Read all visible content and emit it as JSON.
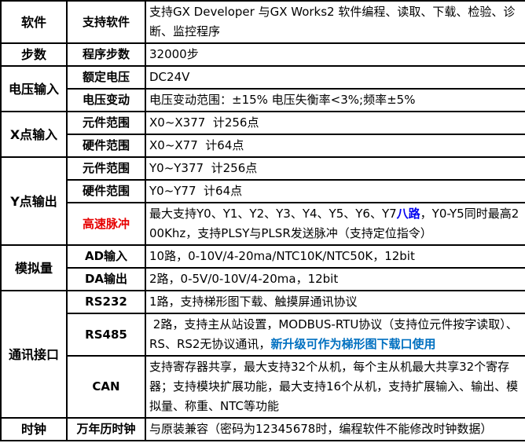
{
  "colors": {
    "border": "#000000",
    "text": "#000000",
    "background": "#ffffff",
    "highlight_red": "#e60000",
    "highlight_blue": "#0000f0",
    "highlight_office_blue": "#0070c0"
  },
  "table": {
    "groups": [
      {
        "category": "软件",
        "rows": [
          {
            "label": "支持软件",
            "desc": [
              {
                "t": "支持GX Developer 与GX Works2 软件编程、读取、下载、检验、诊断、监控程序"
              }
            ]
          }
        ]
      },
      {
        "category": "步数",
        "rows": [
          {
            "label": "程序步数",
            "desc": [
              {
                "t": "32000步"
              }
            ]
          }
        ]
      },
      {
        "category": "电压输入",
        "rows": [
          {
            "label": "额定电压",
            "desc": [
              {
                "t": "DC24V"
              }
            ]
          },
          {
            "label": "电压变动",
            "desc": [
              {
                "t": "电压变动范围：±15% 电压失衡率<3%;频率±5%"
              }
            ]
          }
        ]
      },
      {
        "category": "X点输入",
        "rows": [
          {
            "label": "元件范围",
            "desc": [
              {
                "t": "X0~X377  计256点"
              }
            ]
          },
          {
            "label": "硬件范围",
            "desc": [
              {
                "t": "X0~X77  计64点"
              }
            ]
          }
        ]
      },
      {
        "category": "Y点输出",
        "rows": [
          {
            "label": "元件范围",
            "desc": [
              {
                "t": "Y0~Y377  计256点"
              }
            ]
          },
          {
            "label": "硬件范围",
            "desc": [
              {
                "t": "Y0~Y77  计64点"
              }
            ]
          },
          {
            "label": "高速脉冲",
            "label_style": "red",
            "desc": [
              {
                "t": "最大支持Y0、Y1、Y2、Y3、Y4、Y5、Y6、Y7"
              },
              {
                "t": "八路",
                "s": "blue"
              },
              {
                "t": "，Y0-Y5同时最高200Khz，支持PLSY与PLSR发送脉冲（支持定位指令）"
              }
            ]
          }
        ]
      },
      {
        "category": "模拟量",
        "rows": [
          {
            "label": "AD输入",
            "desc": [
              {
                "t": "10路，0-10V/4-20ma/NTC10K/NTC50K，12bit"
              }
            ]
          },
          {
            "label": "DA输出",
            "desc": [
              {
                "t": "2路，0-5V/0-10V/4-20ma，12bit"
              }
            ]
          }
        ]
      },
      {
        "category": "通讯接口",
        "rows": [
          {
            "label": "RS232",
            "desc": [
              {
                "t": "1路，支持梯形图下载、触摸屏通讯协议"
              }
            ]
          },
          {
            "label": "RS485",
            "desc": [
              {
                "t": " 2路，支持主从站设置，MODBUS-RTU协议（支持位元件按字读取）、RS、RS2无协议通讯，"
              },
              {
                "t": "新升级可作为梯形图下载口使用",
                "s": "blue2"
              }
            ]
          },
          {
            "label": "CAN",
            "desc": [
              {
                "t": "支持寄存器共享，最大支持32个从机，每个主从机最大共享32个寄存器；支持模块扩展功能，最大支持16个从机，支持扩展输入、输出、模拟量、称重、NTC等功能"
              }
            ]
          }
        ]
      },
      {
        "category": "时钟",
        "rows": [
          {
            "label": "万年历时钟",
            "desc": [
              {
                "t": "与原装兼容（密码为12345678时，编程软件不能修改时钟数据）"
              }
            ]
          }
        ]
      }
    ]
  }
}
